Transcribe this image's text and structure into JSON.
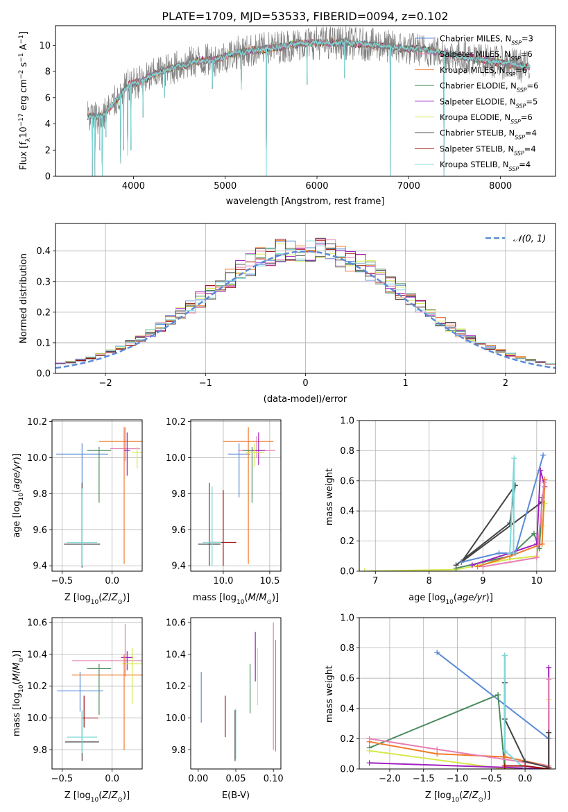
{
  "title": "PLATE=1709, MJD=53533, FIBERID=0094, z=0.102",
  "colors": {
    "Chabrier MILES": "#5b8bd8",
    "Salpeter MILES": "#e77fb3",
    "Kroupa MILES": "#f07a2a",
    "Chabrier ELODIE": "#4a8a5e",
    "Salpeter ELODIE": "#a020c0",
    "Kroupa ELODIE": "#d6e84a",
    "Chabrier STELIB": "#444444",
    "Salpeter STELIB": "#a01010",
    "Kroupa STELIB": "#80d8d8",
    "data": "#7f7f7f"
  },
  "chart_data": [
    {
      "id": "spectrum",
      "type": "line",
      "xlabel": "wavelength [Angstrom, rest frame]",
      "ylabel": "Flux [f_λ10^-17 erg cm^-2 s^-1 A^-1]",
      "xlim": [
        3150,
        8600
      ],
      "ylim": [
        0,
        11.5
      ],
      "xticks": [
        4000,
        5000,
        6000,
        7000,
        8000
      ],
      "yticks": [
        0,
        2,
        4,
        6,
        8,
        10
      ],
      "legend": [
        {
          "model": "Chabrier MILES",
          "nssp": 3
        },
        {
          "model": "Salpeter MILES",
          "nssp": 6
        },
        {
          "model": "Kroupa MILES",
          "nssp": 6
        },
        {
          "model": "Chabrier ELODIE",
          "nssp": 6
        },
        {
          "model": "Salpeter ELODIE",
          "nssp": 5
        },
        {
          "model": "Kroupa ELODIE",
          "nssp": 6
        },
        {
          "model": "Chabrier STELIB",
          "nssp": 4
        },
        {
          "model": "Salpeter STELIB",
          "nssp": 4
        },
        {
          "model": "Kroupa STELIB",
          "nssp": 4
        }
      ],
      "legend_placement": "upper right",
      "continuum": [
        [
          3500,
          4.6
        ],
        [
          3650,
          4.5
        ],
        [
          3800,
          5.7
        ],
        [
          3950,
          7.0
        ],
        [
          4100,
          7.3
        ],
        [
          4300,
          8.0
        ],
        [
          4500,
          8.4
        ],
        [
          4700,
          8.8
        ],
        [
          4900,
          8.9
        ],
        [
          5100,
          9.4
        ],
        [
          5300,
          9.6
        ],
        [
          5500,
          9.8
        ],
        [
          5700,
          10.0
        ],
        [
          5900,
          10.2
        ],
        [
          6100,
          10.2
        ],
        [
          6300,
          10.2
        ],
        [
          6500,
          10.1
        ],
        [
          6700,
          10.0
        ],
        [
          6900,
          9.8
        ],
        [
          7100,
          9.7
        ],
        [
          7300,
          9.5
        ],
        [
          7500,
          9.2
        ],
        [
          7700,
          9.0
        ],
        [
          7900,
          8.8
        ],
        [
          8100,
          8.6
        ],
        [
          8300,
          8.3
        ]
      ],
      "dips": [
        [
          3550,
          0.0
        ],
        [
          3580,
          0.0
        ],
        [
          3630,
          2.0
        ],
        [
          3660,
          0.0
        ],
        [
          3700,
          3.0
        ],
        [
          3860,
          1.0
        ],
        [
          3890,
          2.0
        ],
        [
          3935,
          1.6
        ],
        [
          3970,
          2.0
        ],
        [
          4102,
          4.5
        ],
        [
          4340,
          6.0
        ],
        [
          4861,
          6.7
        ],
        [
          5175,
          6.6
        ],
        [
          5448,
          0.0
        ],
        [
          5890,
          7.0
        ],
        [
          6300,
          7.5
        ],
        [
          6800,
          0.0
        ],
        [
          7385,
          0.0
        ]
      ]
    },
    {
      "id": "residuals",
      "type": "histogram",
      "xlabel": "(data-model)/error",
      "ylabel": "Normed distribution",
      "xlim": [
        -2.5,
        2.5
      ],
      "ylim": [
        0,
        0.49
      ],
      "xticks": [
        -2,
        -1,
        0,
        1,
        2
      ],
      "yticks": [
        0.0,
        0.1,
        0.2,
        0.3,
        0.4
      ],
      "bin_width": 0.1,
      "reference": "N(0,1)",
      "legend_placement": "upper right"
    },
    {
      "id": "age_vs_Z",
      "type": "errorbar",
      "xlabel": "Z [log10(Z/Z⊙)]",
      "ylabel": "age  [log10(age/yr)]",
      "xlim": [
        -0.6,
        0.3
      ],
      "ylim": [
        9.37,
        10.21
      ],
      "xticks": [
        -0.5,
        0.0
      ],
      "yticks": [
        9.4,
        9.6,
        9.8,
        10.0,
        10.2
      ],
      "points": [
        {
          "model": "Chabrier MILES",
          "x": -0.3,
          "xerr": 0.26,
          "y": 10.02,
          "yerr": [
            0.23,
            0.06
          ]
        },
        {
          "model": "Salpeter MILES",
          "x": 0.13,
          "xerr": 0.15,
          "y": 10.05,
          "yerr": [
            0.07,
            0.12
          ]
        },
        {
          "model": "Kroupa MILES",
          "x": 0.12,
          "xerr": 0.25,
          "y": 10.09,
          "yerr": [
            0.68,
            0.08
          ]
        },
        {
          "model": "Chabrier ELODIE",
          "x": -0.13,
          "xerr": 0.12,
          "y": 10.04,
          "yerr": [
            0.29,
            0.02
          ]
        },
        {
          "model": "Salpeter ELODIE",
          "x": 0.15,
          "xerr": 0.03,
          "y": 10.04,
          "yerr": [
            0.14,
            0.1
          ]
        },
        {
          "model": "Kroupa ELODIE",
          "x": 0.25,
          "xerr": 0.05,
          "y": 10.03,
          "yerr": [
            0.09,
            0.03
          ]
        },
        {
          "model": "Chabrier STELIB",
          "x": -0.3,
          "xerr": 0.18,
          "y": 9.52,
          "yerr": [
            0.13,
            0.34
          ]
        },
        {
          "model": "Salpeter STELIB",
          "x": -0.3,
          "xerr": 0.0,
          "y": 9.82,
          "yerr": [
            0.41,
            0.0
          ]
        },
        {
          "model": "Kroupa STELIB",
          "x": -0.3,
          "xerr": 0.15,
          "y": 9.53,
          "yerr": [
            0.13,
            0.3
          ]
        }
      ]
    },
    {
      "id": "age_vs_mass",
      "type": "errorbar",
      "xlabel": "mass [log10(M/M⊙)]",
      "ylabel": "",
      "xlim": [
        9.65,
        10.62
      ],
      "ylim": [
        9.37,
        10.21
      ],
      "xticks": [
        10.0,
        10.5
      ],
      "yticks": [
        9.4,
        9.6,
        9.8,
        10.0,
        10.2
      ],
      "points": [
        {
          "model": "Chabrier MILES",
          "x": 10.17,
          "xerr": 0.12,
          "y": 10.02,
          "yerr": [
            0.24,
            0.06
          ]
        },
        {
          "model": "Salpeter MILES",
          "x": 10.36,
          "xerr": 0.2,
          "y": 10.04,
          "yerr": [
            0.04,
            0.08
          ]
        },
        {
          "model": "Kroupa MILES",
          "x": 10.27,
          "xerr": 0.27,
          "y": 10.09,
          "yerr": [
            0.68,
            0.08
          ]
        },
        {
          "model": "Chabrier ELODIE",
          "x": 10.31,
          "xerr": 0.1,
          "y": 10.04,
          "yerr": [
            0.29,
            0.02
          ]
        },
        {
          "model": "Salpeter ELODIE",
          "x": 10.38,
          "xerr": 0.07,
          "y": 10.04,
          "yerr": [
            0.08,
            0.1
          ]
        },
        {
          "model": "Kroupa ELODIE",
          "x": 10.34,
          "xerr": 0.1,
          "y": 10.03,
          "yerr": [
            0.08,
            0.05
          ]
        },
        {
          "model": "Chabrier STELIB",
          "x": 9.85,
          "xerr": 0.12,
          "y": 9.52,
          "yerr": [
            0.12,
            0.34
          ]
        },
        {
          "model": "Salpeter STELIB",
          "x": 10.0,
          "xerr": 0.14,
          "y": 9.53,
          "yerr": [
            0.13,
            0.29
          ]
        },
        {
          "model": "Kroupa STELIB",
          "x": 9.88,
          "xerr": 0.1,
          "y": 9.53,
          "yerr": [
            0.13,
            0.31
          ]
        }
      ]
    },
    {
      "id": "weight_vs_age",
      "type": "line",
      "xlabel": "age  [log10(age/yr)]",
      "ylabel": "mass weight",
      "xlim": [
        6.7,
        10.35
      ],
      "ylim": [
        0,
        1.0
      ],
      "xticks": [
        7,
        8,
        9,
        10
      ],
      "yticks": [
        0.0,
        0.2,
        0.4,
        0.6,
        0.8,
        1.0
      ],
      "series": [
        {
          "model": "Kroupa ELODIE",
          "x": [
            6.8,
            8.5,
            9.5,
            10.0,
            10.1,
            10.15
          ],
          "y": [
            0.0,
            0.01,
            0.08,
            0.1,
            0.3,
            0.45
          ]
        },
        {
          "model": "Chabrier ELODIE",
          "x": [
            8.5,
            9.0,
            9.5,
            9.95,
            10.05,
            10.1
          ],
          "y": [
            0.02,
            0.06,
            0.1,
            0.25,
            0.15,
            0.49
          ]
        },
        {
          "model": "Chabrier STELIB",
          "x": [
            8.5,
            9.5,
            9.6,
            8.6,
            10.1
          ],
          "y": [
            0.04,
            0.32,
            0.57,
            0.06,
            0.46
          ]
        },
        {
          "model": "Salpeter ELODIE",
          "x": [
            8.8,
            9.5,
            10.0,
            10.07,
            10.15
          ],
          "y": [
            0.04,
            0.12,
            0.18,
            0.67,
            0.56
          ]
        },
        {
          "model": "Kroupa MILES",
          "x": [
            8.9,
            9.5,
            10.1,
            10.15
          ],
          "y": [
            0.03,
            0.1,
            0.18,
            0.61
          ]
        },
        {
          "model": "Chabrier MILES",
          "x": [
            8.6,
            9.3,
            9.6,
            10.12
          ],
          "y": [
            0.06,
            0.12,
            0.12,
            0.77
          ]
        },
        {
          "model": "Kroupa STELIB",
          "x": [
            9.5,
            9.58,
            9.57
          ],
          "y": [
            0.12,
            0.75,
            0.12
          ]
        },
        {
          "model": "Salpeter MILES",
          "x": [
            9.0,
            10.0,
            10.14
          ],
          "y": [
            0.03,
            0.09,
            0.59
          ]
        }
      ]
    },
    {
      "id": "mass_vs_Z",
      "type": "errorbar",
      "xlabel": "Z [log10(Z/Z⊙)]",
      "ylabel": "mass [log10(M/M⊙)]",
      "xlim": [
        -0.6,
        0.3
      ],
      "ylim": [
        9.68,
        10.63
      ],
      "xticks": [
        -0.5,
        0.0
      ],
      "yticks": [
        9.8,
        10.0,
        10.2,
        10.4,
        10.6
      ],
      "points": [
        {
          "model": "Chabrier MILES",
          "x": -0.32,
          "xerr": 0.23,
          "y": 10.17,
          "yerr": [
            0.13,
            0.12
          ]
        },
        {
          "model": "Salpeter MILES",
          "x": -0.05,
          "xerr": 0.35,
          "y": 10.36,
          "yerr": [
            0.0,
            0.0
          ]
        },
        {
          "model": "Kroupa MILES",
          "x": -0.05,
          "xerr": 0.35,
          "y": 10.27,
          "yerr": [
            0.0,
            0.0
          ]
        },
        {
          "model": "Chabrier ELODIE",
          "x": -0.13,
          "xerr": 0.12,
          "y": 10.31,
          "yerr": [
            0.29,
            0.03
          ]
        },
        {
          "model": "Salpeter ELODIE",
          "x": 0.15,
          "xerr": 0.06,
          "y": 10.38,
          "yerr": [
            0.08,
            0.04
          ]
        },
        {
          "model": "Kroupa ELODIE",
          "x": 0.2,
          "xerr": 0.1,
          "y": 10.34,
          "yerr": [
            0.25,
            0.1
          ]
        },
        {
          "model": "Chabrier STELIB",
          "x": -0.3,
          "xerr": 0.17,
          "y": 9.85,
          "yerr": [
            0.12,
            0.19
          ]
        },
        {
          "model": "Salpeter STELIB",
          "x": -0.22,
          "xerr": 0.08,
          "y": 10.0,
          "yerr": [
            0.0,
            0.0
          ]
        },
        {
          "model": "Kroupa STELIB",
          "x": -0.3,
          "xerr": 0.15,
          "y": 9.88,
          "yerr": [
            0.1,
            0.17
          ]
        },
        {
          "model": "Kroupa MILES",
          "x": 0.12,
          "xerr": 0.0,
          "y": 10.2,
          "yerr": [
            0.4,
            0.2
          ]
        },
        {
          "model": "Salpeter MILES",
          "x": 0.13,
          "xerr": 0.0,
          "y": 10.36,
          "yerr": [
            0.1,
            0.23
          ]
        },
        {
          "model": "Salpeter STELIB",
          "x": -0.28,
          "xerr": 0.0,
          "y": 10.0,
          "yerr": [
            0.06,
            0.14
          ]
        }
      ]
    },
    {
      "id": "mass_vs_ebv",
      "type": "errorbar",
      "xlabel": "E(B-V)",
      "ylabel": "",
      "xlim": [
        -0.01,
        0.11
      ],
      "ylim": [
        9.68,
        10.63
      ],
      "xticks": [
        0.0,
        0.05,
        0.1
      ],
      "yticks": [
        9.8,
        10.0,
        10.2,
        10.4,
        10.6
      ],
      "points": [
        {
          "model": "Chabrier MILES",
          "x": 0.004,
          "y": 10.13,
          "yerr": [
            0.16,
            0.16
          ]
        },
        {
          "model": "Salpeter STELIB",
          "x": 0.036,
          "y": 10.01,
          "yerr": [
            0.13,
            0.13
          ]
        },
        {
          "model": "Chabrier STELIB",
          "x": 0.049,
          "y": 9.9,
          "yerr": [
            0.17,
            0.15
          ]
        },
        {
          "model": "Kroupa STELIB",
          "x": 0.05,
          "y": 9.9,
          "yerr": [
            0.16,
            0.16
          ]
        },
        {
          "model": "Chabrier ELODIE",
          "x": 0.069,
          "y": 10.15,
          "yerr": [
            0.12,
            0.19
          ]
        },
        {
          "model": "Salpeter ELODIE",
          "x": 0.076,
          "y": 10.38,
          "yerr": [
            0.15,
            0.16
          ]
        },
        {
          "model": "Kroupa ELODIE",
          "x": 0.079,
          "y": 10.26,
          "yerr": [
            0.18,
            0.18
          ]
        },
        {
          "model": "Salpeter MILES",
          "x": 0.1,
          "y": 10.2,
          "yerr": [
            0.4,
            0.4
          ]
        },
        {
          "model": "Kroupa MILES",
          "x": 0.103,
          "y": 10.14,
          "yerr": [
            0.35,
            0.35
          ]
        }
      ]
    },
    {
      "id": "weight_vs_Z",
      "type": "line",
      "xlabel": "Z [log10(Z/Z⊙)]",
      "ylabel": "mass weight",
      "xlim": [
        -2.45,
        0.45
      ],
      "ylim": [
        0,
        1.0
      ],
      "xticks": [
        -2.0,
        -1.5,
        -1.0,
        -0.5,
        0.0
      ],
      "yticks": [
        0.0,
        0.2,
        0.4,
        0.6,
        0.8,
        1.0
      ],
      "series": [
        {
          "model": "Chabrier MILES",
          "x": [
            -1.3,
            0.35
          ],
          "y": [
            0.77,
            0.2
          ]
        },
        {
          "model": "Chabrier ELODIE",
          "x": [
            -2.3,
            -0.4,
            -0.3,
            -0.3
          ],
          "y": [
            0.14,
            0.49,
            0.0,
            0.75
          ]
        },
        {
          "model": "Kroupa ELODIE",
          "x": [
            -2.3,
            -0.3,
            0.35,
            0.35
          ],
          "y": [
            0.12,
            0.0,
            0.0,
            0.46
          ]
        },
        {
          "model": "Salpeter ELODIE",
          "x": [
            -2.3,
            -0.3,
            0.35,
            0.35
          ],
          "y": [
            0.04,
            0.01,
            0.0,
            0.67
          ]
        },
        {
          "model": "Kroupa MILES",
          "x": [
            -2.3,
            -1.3,
            -0.3,
            0.35
          ],
          "y": [
            0.18,
            0.1,
            0.08,
            0.02
          ]
        },
        {
          "model": "Salpeter MILES",
          "x": [
            -2.3,
            -1.3,
            0.35,
            0.35
          ],
          "y": [
            0.2,
            0.13,
            0.02,
            0.59
          ]
        },
        {
          "model": "Chabrier STELIB",
          "x": [
            -0.3,
            -0.3,
            0.0,
            0.35,
            0.35
          ],
          "y": [
            0.57,
            0.33,
            0.05,
            0.01,
            0.24
          ]
        },
        {
          "model": "Kroupa STELIB",
          "x": [
            -0.3,
            -0.3,
            0.0
          ],
          "y": [
            0.75,
            0.12,
            0.0
          ]
        },
        {
          "model": "Salpeter STELIB",
          "x": [
            -0.3,
            0.0,
            0.35
          ],
          "y": [
            0.02,
            0.02,
            0.0
          ]
        }
      ]
    }
  ]
}
